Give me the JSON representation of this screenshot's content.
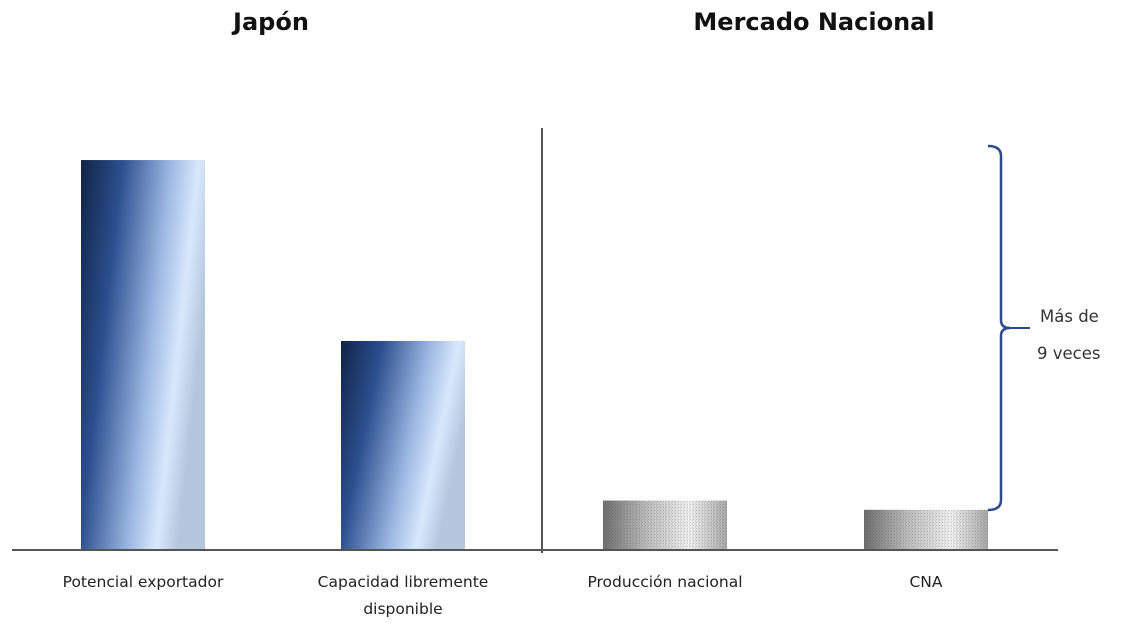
{
  "chart_data": {
    "type": "bar",
    "groups": [
      {
        "title": "Japón",
        "categories": [
          "Potencial exportador",
          "Capacidad libremente disponible"
        ]
      },
      {
        "title": "Mercado Nacional",
        "categories": [
          "Producción nacional",
          "CNA"
        ]
      }
    ],
    "categories": [
      "Potencial exportador",
      "Capacidad libremente disponible",
      "Producción nacional",
      "CNA"
    ],
    "values": [
      9.7,
      5.2,
      1.23,
      1.0
    ],
    "annotation": {
      "text_lines": [
        "Más de",
        "9 veces"
      ]
    },
    "grid": false,
    "colors": {
      "japan_bars": "#1f3a6e",
      "japan_highlight": "#d6e6fb",
      "national_bars": "#8a8a8a",
      "annotation": "#2f4a8a",
      "axis": "#555555"
    }
  }
}
